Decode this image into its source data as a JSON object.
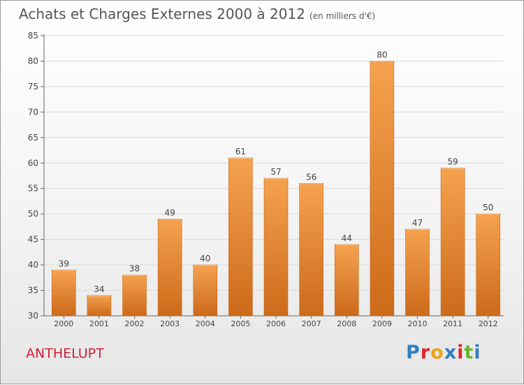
{
  "header": {
    "title": "Achats et Charges Externes 2000 à 2012",
    "unit": "(en milliers d'€)"
  },
  "footer": {
    "commune": "ANTHELUPT",
    "logo_text": "Proxiti",
    "logo_colors": [
      "#2f7fc1",
      "#e2232a",
      "#f0a21a",
      "#2f7fc1",
      "#e2232a",
      "#69b42b",
      "#2f7fc1"
    ]
  },
  "chart_data": {
    "type": "bar",
    "title": "Achats et Charges Externes 2000 à 2012",
    "categories": [
      "2000",
      "2001",
      "2002",
      "2003",
      "2004",
      "2005",
      "2006",
      "2007",
      "2008",
      "2009",
      "2010",
      "2011",
      "2012"
    ],
    "values": [
      39,
      34,
      38,
      49,
      40,
      61,
      57,
      56,
      44,
      80,
      47,
      59,
      50
    ],
    "ylim": [
      30,
      85
    ],
    "yticks": [
      30,
      35,
      40,
      45,
      50,
      55,
      60,
      65,
      70,
      75,
      80,
      85
    ],
    "grid": true,
    "bar_color_top": "#f5a24e",
    "bar_color_bottom": "#cc6a1a"
  }
}
